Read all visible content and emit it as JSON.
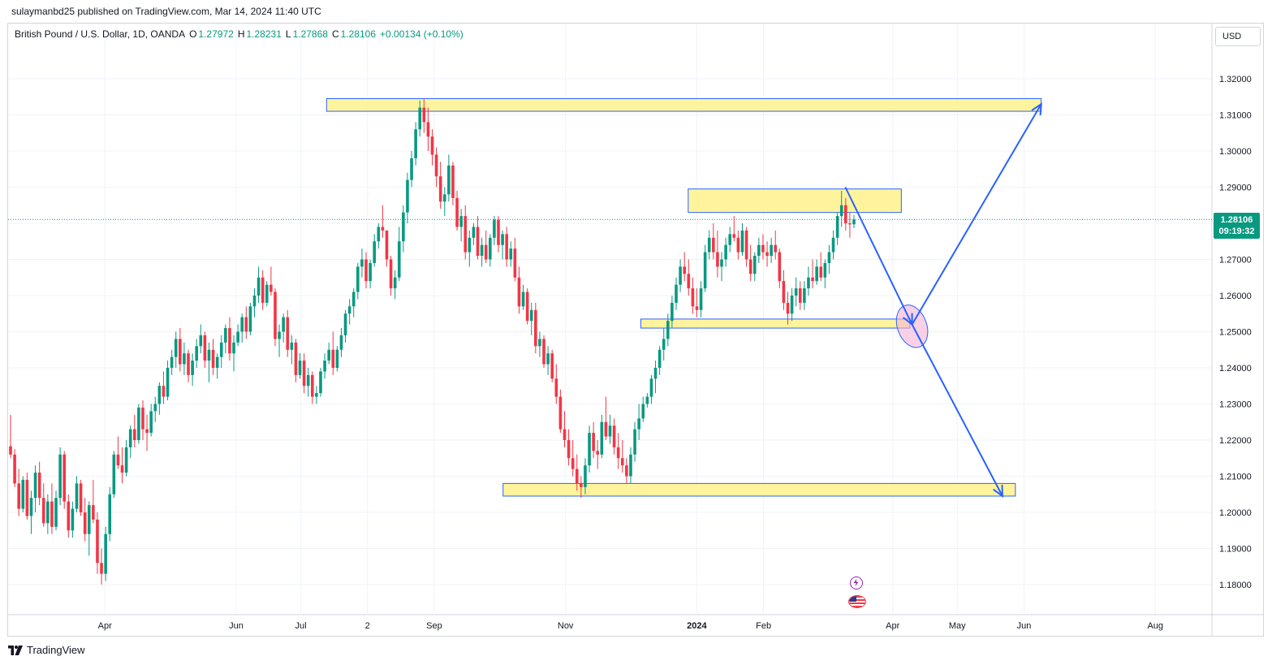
{
  "header": {
    "publisher": "sulaymanbd25 published on TradingView.com, Mar 14, 2024 11:40 UTC"
  },
  "legend": {
    "symbol": "British Pound / U.S. Dollar, 1D, OANDA",
    "open_label": "O",
    "open": "1.27972",
    "high_label": "H",
    "high": "1.28231",
    "low_label": "L",
    "low": "1.27868",
    "close_label": "C",
    "close": "1.28106",
    "change": "+0.00134 (+0.10%)"
  },
  "currency_button": {
    "label": "USD"
  },
  "price_tag": {
    "price": "1.28106",
    "countdown": "09:19:32"
  },
  "footer": {
    "brand": "TradingView"
  },
  "colors": {
    "up": "#089981",
    "down": "#f23645",
    "zone_fill": "#fff28c",
    "zone_border": "#2962ff",
    "arrow": "#2962ff",
    "ellipse": "#f5b3d6"
  },
  "icons": [
    "lightning-event-icon",
    "us-flag-event-icon"
  ],
  "chart_data": {
    "type": "candlestick",
    "symbol": "GBPUSD",
    "y_ticks": [
      "1.32000",
      "1.31000",
      "1.30000",
      "1.29000",
      "1.28000",
      "1.27000",
      "1.26000",
      "1.25000",
      "1.24000",
      "1.23000",
      "1.22000",
      "1.21000",
      "1.20000",
      "1.19000",
      "1.18000"
    ],
    "ylim": [
      1.175,
      1.325
    ],
    "x_ticks": [
      "Apr",
      "Jun",
      "Jul",
      "2",
      "Sep",
      "Nov",
      "2024",
      "Feb",
      "Apr",
      "May",
      "Jun",
      "Aug"
    ],
    "last_price": 1.28106,
    "zones": [
      {
        "from_date": "2023-07-13",
        "to_date": "2024-06-09",
        "low": 1.311,
        "high": 1.3145
      },
      {
        "from_date": "2023-12-28",
        "to_date": "2024-04-05",
        "low": 1.283,
        "high": 1.2895
      },
      {
        "from_date": "2023-12-06",
        "to_date": "2024-04-09",
        "low": 1.251,
        "high": 1.2535
      },
      {
        "from_date": "2023-10-03",
        "to_date": "2024-05-28",
        "low": 1.2045,
        "high": 1.208
      }
    ],
    "arrows": [
      {
        "from": [
          "2024-03-10",
          1.29
        ],
        "to": [
          "2024-04-10",
          1.252
        ]
      },
      {
        "from": [
          "2024-04-10",
          1.252
        ],
        "to": [
          "2024-06-09",
          1.313
        ]
      },
      {
        "from": [
          "2024-04-10",
          1.252
        ],
        "to": [
          "2024-05-22",
          1.2045
        ]
      }
    ],
    "ellipse": {
      "date": "2024-04-10",
      "price": 1.2515
    },
    "events": [
      "2024-03-12",
      "2024-03-14"
    ],
    "candles_ohlc": [
      [
        1.2183,
        1.227,
        1.215,
        1.216
      ],
      [
        1.216,
        1.2175,
        1.207,
        1.208
      ],
      [
        1.208,
        1.212,
        1.199,
        1.201
      ],
      [
        1.201,
        1.21,
        1.2,
        1.209
      ],
      [
        1.209,
        1.211,
        1.198,
        1.199
      ],
      [
        1.199,
        1.206,
        1.194,
        1.204
      ],
      [
        1.204,
        1.213,
        1.2,
        1.211
      ],
      [
        1.211,
        1.214,
        1.202,
        1.204
      ],
      [
        1.204,
        1.208,
        1.196,
        1.197
      ],
      [
        1.197,
        1.205,
        1.194,
        1.203
      ],
      [
        1.203,
        1.208,
        1.194,
        1.196
      ],
      [
        1.196,
        1.206,
        1.195,
        1.204
      ],
      [
        1.204,
        1.218,
        1.202,
        1.216
      ],
      [
        1.216,
        1.217,
        1.201,
        1.203
      ],
      [
        1.203,
        1.205,
        1.193,
        1.195
      ],
      [
        1.195,
        1.203,
        1.193,
        1.201
      ],
      [
        1.201,
        1.21,
        1.2,
        1.208
      ],
      [
        1.208,
        1.209,
        1.199,
        1.2
      ],
      [
        1.2,
        1.204,
        1.192,
        1.194
      ],
      [
        1.194,
        1.203,
        1.188,
        1.202
      ],
      [
        1.202,
        1.209,
        1.197,
        1.198
      ],
      [
        1.198,
        1.2,
        1.183,
        1.186
      ],
      [
        1.186,
        1.19,
        1.18,
        1.183
      ],
      [
        1.183,
        1.196,
        1.181,
        1.194
      ],
      [
        1.194,
        1.207,
        1.192,
        1.205
      ],
      [
        1.205,
        1.217,
        1.204,
        1.216
      ],
      [
        1.216,
        1.221,
        1.212,
        1.213
      ],
      [
        1.213,
        1.218,
        1.208,
        1.211
      ],
      [
        1.211,
        1.22,
        1.21,
        1.218
      ],
      [
        1.218,
        1.224,
        1.215,
        1.223
      ],
      [
        1.223,
        1.227,
        1.218,
        1.22
      ],
      [
        1.22,
        1.23,
        1.219,
        1.229
      ],
      [
        1.229,
        1.231,
        1.22,
        1.223
      ],
      [
        1.223,
        1.227,
        1.217,
        1.222
      ],
      [
        1.222,
        1.23,
        1.221,
        1.228
      ],
      [
        1.228,
        1.232,
        1.225,
        1.23
      ],
      [
        1.23,
        1.236,
        1.227,
        1.235
      ],
      [
        1.235,
        1.239,
        1.23,
        1.232
      ],
      [
        1.232,
        1.242,
        1.231,
        1.24
      ],
      [
        1.24,
        1.245,
        1.238,
        1.243
      ],
      [
        1.243,
        1.25,
        1.24,
        1.248
      ],
      [
        1.248,
        1.251,
        1.239,
        1.241
      ],
      [
        1.241,
        1.247,
        1.238,
        1.244
      ],
      [
        1.244,
        1.245,
        1.236,
        1.238
      ],
      [
        1.238,
        1.244,
        1.235,
        1.242
      ],
      [
        1.242,
        1.248,
        1.24,
        1.246
      ],
      [
        1.246,
        1.252,
        1.244,
        1.249
      ],
      [
        1.249,
        1.25,
        1.24,
        1.242
      ],
      [
        1.242,
        1.247,
        1.236,
        1.245
      ],
      [
        1.245,
        1.248,
        1.238,
        1.24
      ],
      [
        1.24,
        1.244,
        1.237,
        1.243
      ],
      [
        1.243,
        1.249,
        1.24,
        1.247
      ],
      [
        1.247,
        1.252,
        1.244,
        1.251
      ],
      [
        1.251,
        1.254,
        1.242,
        1.244
      ],
      [
        1.244,
        1.249,
        1.239,
        1.247
      ],
      [
        1.247,
        1.252,
        1.246,
        1.25
      ],
      [
        1.25,
        1.255,
        1.247,
        1.254
      ],
      [
        1.254,
        1.257,
        1.248,
        1.25
      ],
      [
        1.25,
        1.258,
        1.249,
        1.257
      ],
      [
        1.257,
        1.262,
        1.254,
        1.26
      ],
      [
        1.26,
        1.268,
        1.258,
        1.265
      ],
      [
        1.265,
        1.267,
        1.256,
        1.258
      ],
      [
        1.258,
        1.264,
        1.257,
        1.263
      ],
      [
        1.263,
        1.268,
        1.26,
        1.261
      ],
      [
        1.261,
        1.262,
        1.246,
        1.248
      ],
      [
        1.248,
        1.252,
        1.243,
        1.25
      ],
      [
        1.25,
        1.255,
        1.247,
        1.254
      ],
      [
        1.254,
        1.256,
        1.243,
        1.245
      ],
      [
        1.245,
        1.249,
        1.241,
        1.247
      ],
      [
        1.247,
        1.248,
        1.236,
        1.238
      ],
      [
        1.238,
        1.244,
        1.237,
        1.242
      ],
      [
        1.242,
        1.244,
        1.233,
        1.235
      ],
      [
        1.235,
        1.24,
        1.232,
        1.238
      ],
      [
        1.238,
        1.239,
        1.23,
        1.232
      ],
      [
        1.232,
        1.235,
        1.23,
        1.233
      ],
      [
        1.233,
        1.24,
        1.232,
        1.239
      ],
      [
        1.239,
        1.244,
        1.237,
        1.242
      ],
      [
        1.242,
        1.247,
        1.241,
        1.245
      ],
      [
        1.245,
        1.25,
        1.238,
        1.24
      ],
      [
        1.24,
        1.246,
        1.239,
        1.245
      ],
      [
        1.245,
        1.251,
        1.243,
        1.249
      ],
      [
        1.249,
        1.256,
        1.247,
        1.255
      ],
      [
        1.255,
        1.259,
        1.252,
        1.257
      ],
      [
        1.257,
        1.262,
        1.254,
        1.261
      ],
      [
        1.261,
        1.269,
        1.259,
        1.268
      ],
      [
        1.268,
        1.273,
        1.265,
        1.27
      ],
      [
        1.27,
        1.272,
        1.262,
        1.264
      ],
      [
        1.264,
        1.27,
        1.262,
        1.269
      ],
      [
        1.269,
        1.277,
        1.268,
        1.275
      ],
      [
        1.275,
        1.28,
        1.273,
        1.279
      ],
      [
        1.279,
        1.285,
        1.276,
        1.278
      ],
      [
        1.278,
        1.278,
        1.268,
        1.27
      ],
      [
        1.27,
        1.271,
        1.26,
        1.262
      ],
      [
        1.262,
        1.267,
        1.259,
        1.265
      ],
      [
        1.265,
        1.279,
        1.264,
        1.275
      ],
      [
        1.275,
        1.285,
        1.272,
        1.283
      ],
      [
        1.283,
        1.294,
        1.28,
        1.292
      ],
      [
        1.292,
        1.3,
        1.29,
        1.298
      ],
      [
        1.298,
        1.308,
        1.296,
        1.306
      ],
      [
        1.306,
        1.314,
        1.304,
        1.312
      ],
      [
        1.312,
        1.3145,
        1.305,
        1.308
      ],
      [
        1.308,
        1.312,
        1.3,
        1.304
      ],
      [
        1.304,
        1.306,
        1.296,
        1.299
      ],
      [
        1.299,
        1.301,
        1.29,
        1.293
      ],
      [
        1.293,
        1.297,
        1.284,
        1.286
      ],
      [
        1.286,
        1.29,
        1.282,
        1.288
      ],
      [
        1.288,
        1.299,
        1.286,
        1.296
      ],
      [
        1.296,
        1.297,
        1.285,
        1.287
      ],
      [
        1.287,
        1.289,
        1.278,
        1.279
      ],
      [
        1.279,
        1.284,
        1.275,
        1.282
      ],
      [
        1.282,
        1.285,
        1.27,
        1.272
      ],
      [
        1.272,
        1.278,
        1.268,
        1.276
      ],
      [
        1.276,
        1.28,
        1.274,
        1.279
      ],
      [
        1.279,
        1.282,
        1.27,
        1.271
      ],
      [
        1.271,
        1.276,
        1.268,
        1.274
      ],
      [
        1.274,
        1.278,
        1.269,
        1.27
      ],
      [
        1.27,
        1.277,
        1.268,
        1.276
      ],
      [
        1.276,
        1.282,
        1.274,
        1.281
      ],
      [
        1.281,
        1.282,
        1.272,
        1.274
      ],
      [
        1.274,
        1.278,
        1.27,
        1.277
      ],
      [
        1.277,
        1.279,
        1.268,
        1.27
      ],
      [
        1.27,
        1.275,
        1.268,
        1.273
      ],
      [
        1.273,
        1.276,
        1.264,
        1.265
      ],
      [
        1.265,
        1.268,
        1.255,
        1.257
      ],
      [
        1.257,
        1.263,
        1.256,
        1.261
      ],
      [
        1.261,
        1.262,
        1.252,
        1.253
      ],
      [
        1.253,
        1.258,
        1.249,
        1.256
      ],
      [
        1.256,
        1.258,
        1.244,
        1.246
      ],
      [
        1.246,
        1.25,
        1.243,
        1.248
      ],
      [
        1.248,
        1.249,
        1.24,
        1.241
      ],
      [
        1.241,
        1.246,
        1.238,
        1.244
      ],
      [
        1.244,
        1.245,
        1.236,
        1.237
      ],
      [
        1.237,
        1.241,
        1.23,
        1.232
      ],
      [
        1.232,
        1.234,
        1.222,
        1.223
      ],
      [
        1.223,
        1.228,
        1.218,
        1.22
      ],
      [
        1.22,
        1.223,
        1.213,
        1.215
      ],
      [
        1.215,
        1.22,
        1.21,
        1.212
      ],
      [
        1.212,
        1.216,
        1.206,
        1.208
      ],
      [
        1.208,
        1.21,
        1.204,
        1.207
      ],
      [
        1.207,
        1.215,
        1.205,
        1.213
      ],
      [
        1.213,
        1.224,
        1.211,
        1.222
      ],
      [
        1.222,
        1.225,
        1.215,
        1.217
      ],
      [
        1.217,
        1.22,
        1.212,
        1.216
      ],
      [
        1.216,
        1.227,
        1.215,
        1.225
      ],
      [
        1.225,
        1.232,
        1.22,
        1.221
      ],
      [
        1.221,
        1.227,
        1.219,
        1.224
      ],
      [
        1.224,
        1.226,
        1.216,
        1.218
      ],
      [
        1.218,
        1.222,
        1.212,
        1.215
      ],
      [
        1.215,
        1.22,
        1.211,
        1.213
      ],
      [
        1.213,
        1.215,
        1.208,
        1.21
      ],
      [
        1.21,
        1.218,
        1.208,
        1.216
      ],
      [
        1.216,
        1.225,
        1.214,
        1.223
      ],
      [
        1.223,
        1.23,
        1.22,
        1.226
      ],
      [
        1.226,
        1.232,
        1.225,
        1.23
      ],
      [
        1.23,
        1.233,
        1.229,
        1.232
      ],
      [
        1.232,
        1.238,
        1.23,
        1.237
      ],
      [
        1.237,
        1.242,
        1.233,
        1.24
      ],
      [
        1.24,
        1.246,
        1.238,
        1.245
      ],
      [
        1.245,
        1.251,
        1.242,
        1.248
      ],
      [
        1.248,
        1.255,
        1.246,
        1.253
      ],
      [
        1.253,
        1.26,
        1.251,
        1.258
      ],
      [
        1.258,
        1.265,
        1.256,
        1.263
      ],
      [
        1.263,
        1.27,
        1.261,
        1.268
      ],
      [
        1.268,
        1.272,
        1.264,
        1.266
      ],
      [
        1.266,
        1.27,
        1.26,
        1.262
      ],
      [
        1.262,
        1.265,
        1.255,
        1.257
      ],
      [
        1.257,
        1.262,
        1.254,
        1.256
      ],
      [
        1.256,
        1.264,
        1.254,
        1.262
      ],
      [
        1.262,
        1.274,
        1.261,
        1.272
      ],
      [
        1.272,
        1.278,
        1.27,
        1.276
      ],
      [
        1.276,
        1.28,
        1.27,
        1.272
      ],
      [
        1.272,
        1.278,
        1.265,
        1.268
      ],
      [
        1.268,
        1.272,
        1.264,
        1.27
      ],
      [
        1.27,
        1.276,
        1.268,
        1.274
      ],
      [
        1.274,
        1.279,
        1.272,
        1.277
      ],
      [
        1.277,
        1.282,
        1.275,
        1.276
      ],
      [
        1.276,
        1.278,
        1.27,
        1.272
      ],
      [
        1.272,
        1.28,
        1.271,
        1.278
      ],
      [
        1.278,
        1.279,
        1.268,
        1.27
      ],
      [
        1.27,
        1.274,
        1.264,
        1.266
      ],
      [
        1.266,
        1.272,
        1.264,
        1.271
      ],
      [
        1.271,
        1.276,
        1.269,
        1.274
      ],
      [
        1.274,
        1.277,
        1.27,
        1.272
      ],
      [
        1.272,
        1.275,
        1.268,
        1.271
      ],
      [
        1.271,
        1.276,
        1.269,
        1.274
      ],
      [
        1.274,
        1.278,
        1.27,
        1.272
      ],
      [
        1.272,
        1.273,
        1.262,
        1.264
      ],
      [
        1.264,
        1.267,
        1.256,
        1.258
      ],
      [
        1.258,
        1.261,
        1.252,
        1.255
      ],
      [
        1.255,
        1.262,
        1.253,
        1.26
      ],
      [
        1.26,
        1.265,
        1.257,
        1.262
      ],
      [
        1.262,
        1.264,
        1.256,
        1.258
      ],
      [
        1.258,
        1.264,
        1.256,
        1.262
      ],
      [
        1.262,
        1.268,
        1.26,
        1.265
      ],
      [
        1.265,
        1.27,
        1.262,
        1.264
      ],
      [
        1.264,
        1.27,
        1.263,
        1.268
      ],
      [
        1.268,
        1.272,
        1.264,
        1.265
      ],
      [
        1.265,
        1.27,
        1.262,
        1.269
      ],
      [
        1.269,
        1.274,
        1.266,
        1.272
      ],
      [
        1.272,
        1.278,
        1.27,
        1.276
      ],
      [
        1.276,
        1.283,
        1.274,
        1.282
      ],
      [
        1.282,
        1.289,
        1.279,
        1.285
      ],
      [
        1.285,
        1.287,
        1.278,
        1.28
      ],
      [
        1.28,
        1.283,
        1.276,
        1.2797
      ],
      [
        1.27972,
        1.28231,
        1.27868,
        1.28106
      ]
    ]
  }
}
